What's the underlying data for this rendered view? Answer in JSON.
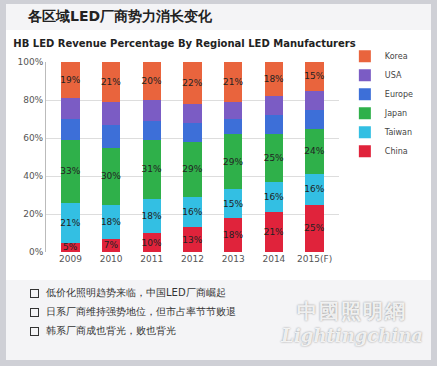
{
  "slide_title": "各区域LED厂商势力消长变化",
  "chart_data": {
    "type": "bar",
    "title": "HB LED Revenue Percentage By Regional LED Manufacturers",
    "categories": [
      "2009",
      "2010",
      "2011",
      "2012",
      "2013",
      "2014",
      "2015(F)"
    ],
    "stacked": true,
    "grid": true,
    "legend": "right",
    "ylim": [
      0,
      100
    ],
    "yticks": [
      {
        "value": 0,
        "label": "0%"
      },
      {
        "value": 20,
        "label": "20%"
      },
      {
        "value": 40,
        "label": "40%"
      },
      {
        "value": 60,
        "label": "60%"
      },
      {
        "value": 80,
        "label": "80%"
      },
      {
        "value": 100,
        "label": "100%"
      }
    ],
    "series": [
      {
        "name": "China",
        "color": "#e0233b",
        "values": [
          5,
          7,
          10,
          13,
          18,
          21,
          25
        ],
        "data_labels": true,
        "value_labels": [
          "5%",
          "7%",
          "10%",
          "13%",
          "18%",
          "21%",
          "25%"
        ]
      },
      {
        "name": "Taiwan",
        "color": "#33bfe3",
        "values": [
          21,
          18,
          18,
          16,
          15,
          16,
          16
        ],
        "data_labels": true,
        "value_labels": [
          "21%",
          "18%",
          "18%",
          "16%",
          "15%",
          "16%",
          "16%"
        ]
      },
      {
        "name": "Japan",
        "color": "#2fb04a",
        "values": [
          33,
          30,
          31,
          29,
          29,
          25,
          24
        ],
        "data_labels": true,
        "value_labels": [
          "33%",
          "30%",
          "31%",
          "29%",
          "29%",
          "25%",
          "24%"
        ]
      },
      {
        "name": "Europe",
        "color": "#3d6fd8",
        "values": [
          11,
          12,
          10,
          10,
          8,
          10,
          10
        ],
        "data_labels": false
      },
      {
        "name": "USA",
        "color": "#7b5cc4",
        "values": [
          11,
          12,
          11,
          10,
          9,
          10,
          10
        ],
        "data_labels": false
      },
      {
        "name": "Korea",
        "color": "#e9643d",
        "values": [
          19,
          21,
          20,
          22,
          21,
          18,
          15
        ],
        "data_labels": true,
        "value_labels": [
          "19%",
          "21%",
          "20%",
          "22%",
          "21%",
          "18%",
          "15%"
        ]
      }
    ]
  },
  "notes": [
    "低价化照明趋势来临，中国LED厂商崛起",
    "日系厂商维持强势地位，但市占率节节败退",
    "韩系厂商成也背光，败也背光"
  ],
  "watermark": [
    "中國照明網",
    "Lightingchina"
  ]
}
